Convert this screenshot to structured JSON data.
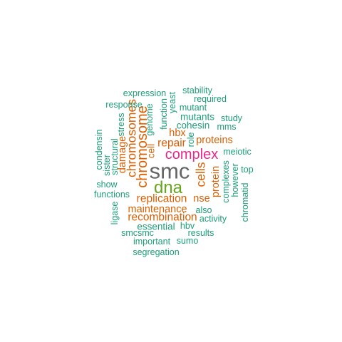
{
  "palette": {
    "teal": "#1b9e77",
    "orange": "#d95f02",
    "pink": "#e7298a",
    "green": "#66a61e",
    "gray": "#666666"
  },
  "words": {
    "smc": "smc",
    "dna": "dna",
    "complex": "complex",
    "chromosome": "chromosome",
    "chromosomes": "chromosomes",
    "replication": "replication",
    "repair": "repair",
    "cells": "cells",
    "recombination": "recombination",
    "maintenance": "maintenance",
    "damage": "damage",
    "proteins": "proteins",
    "protein": "protein",
    "hbx": "hbx",
    "nse": "nse",
    "cell": "cell",
    "stability": "stability",
    "expression": "expression",
    "required": "required",
    "yeast": "yeast",
    "response": "response",
    "mutant": "mutant",
    "function": "function",
    "genome": "genome",
    "mutants": "mutants",
    "study": "study",
    "stress": "stress",
    "cohesin": "cohesin",
    "mms": "mms",
    "condensin": "condensin",
    "role": "role",
    "structural": "structural",
    "meiotic": "meiotic",
    "sister": "sister",
    "complexes": "complexes",
    "however": "however",
    "top": "top",
    "show": "show",
    "functions": "functions",
    "chromatid": "chromatid",
    "ligase": "ligase",
    "also": "also",
    "activity": "activity",
    "essential": "essential",
    "hbv": "hbv",
    "smcsmc": "smcsmc",
    "results": "results",
    "important": "important",
    "sumo": "sumo",
    "segregation": "segregation"
  }
}
